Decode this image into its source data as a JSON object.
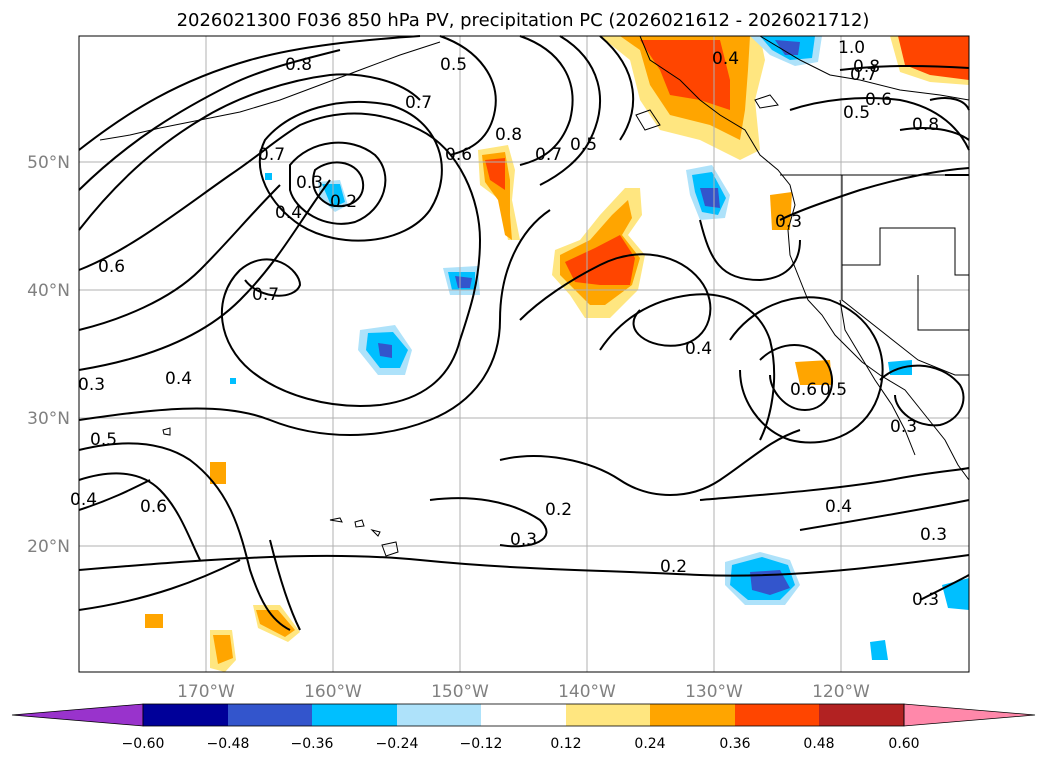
{
  "title": "2026021300 F036 850 hPa PV, precipitation PC (2026021612 - 2026021712)",
  "lat_labels": [
    "50°N",
    "40°N",
    "30°N",
    "20°N"
  ],
  "lon_labels": [
    "170°W",
    "160°W",
    "150°W",
    "140°W",
    "130°W",
    "120°W"
  ],
  "colorbar": {
    "ticks": [
      "−0.60",
      "−0.48",
      "−0.36",
      "−0.24",
      "−0.12",
      "0.12",
      "0.24",
      "0.36",
      "0.48",
      "0.60"
    ],
    "colors": [
      "#9933cc",
      "#000099",
      "#3355cc",
      "#00bfff",
      "#aee2fa",
      "#ffffff",
      "#ffe680",
      "#ffa500",
      "#ff4500",
      "#b22222",
      "#ff88aa"
    ]
  },
  "contour_labels": [
    "0.2",
    "0.3",
    "0.4",
    "0.5",
    "0.6",
    "0.7",
    "0.8",
    "1.0"
  ]
}
